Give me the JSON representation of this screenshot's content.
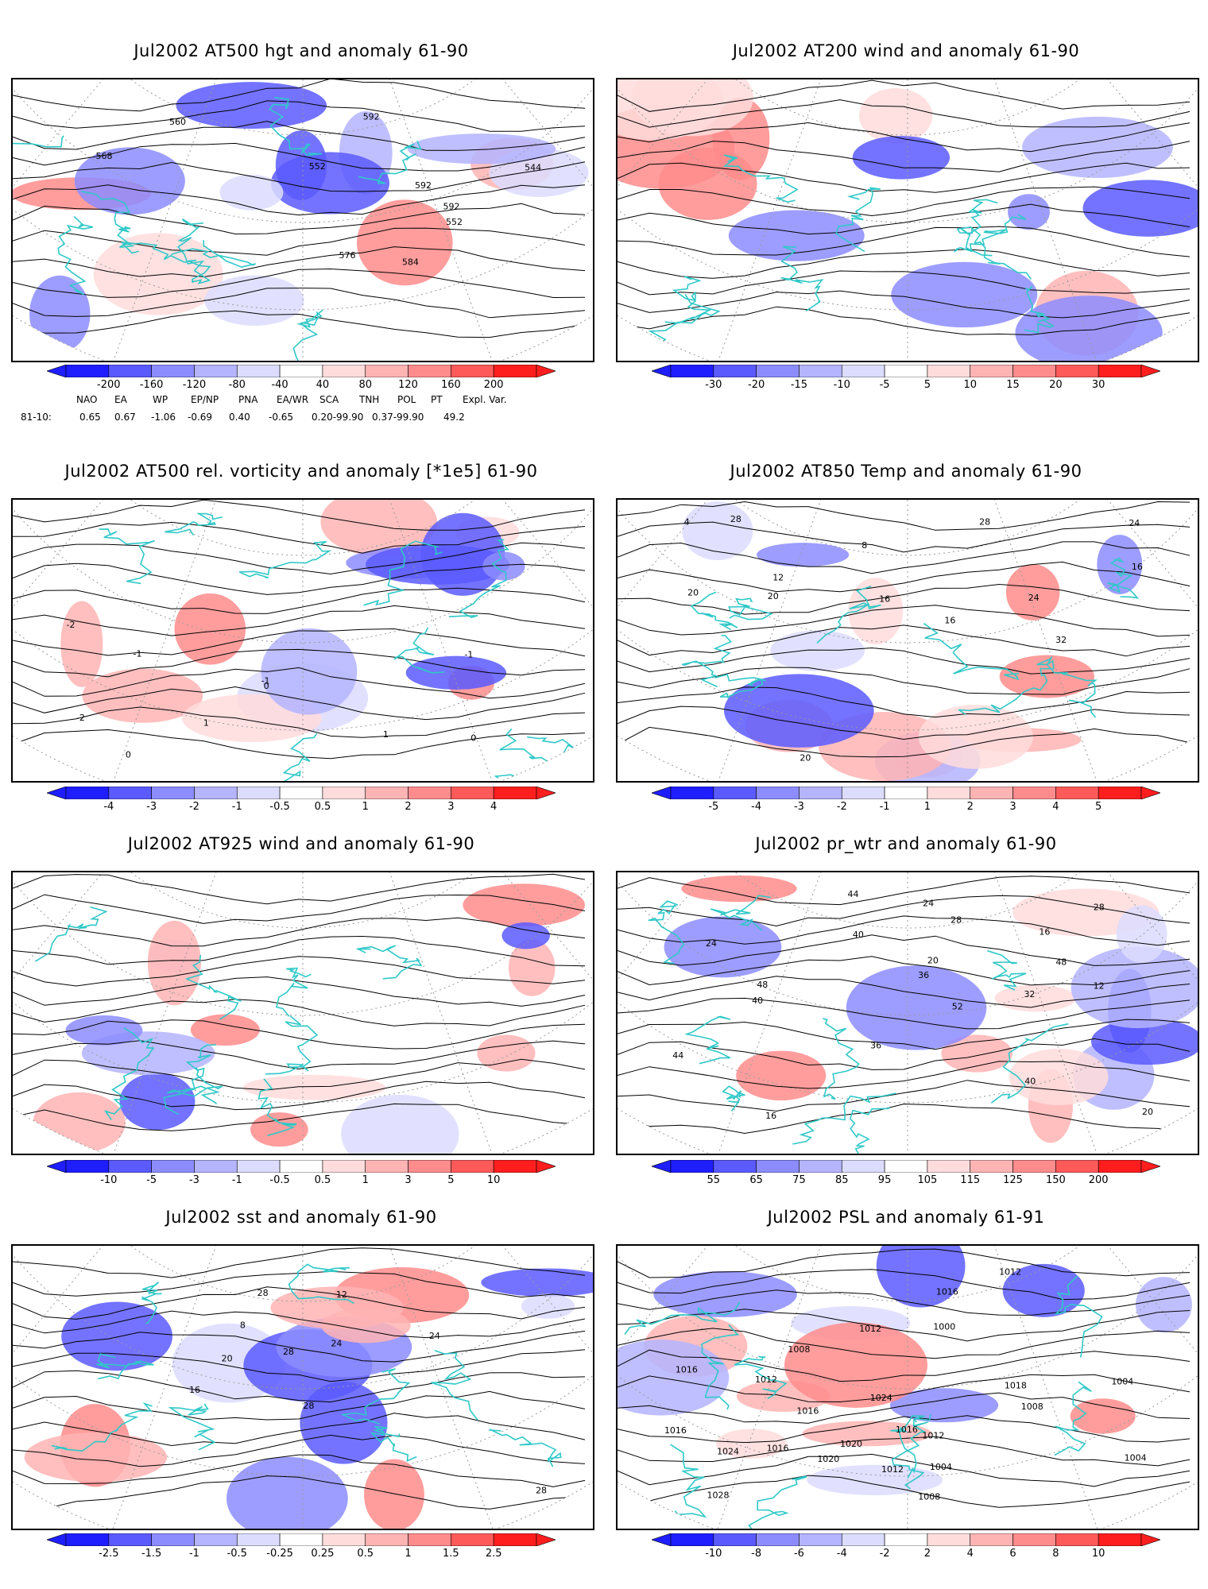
{
  "panels": [
    {
      "title": "Jul2002 AT500 hgt and anomaly 61-90",
      "levels": [
        "-200",
        "-160",
        "-120",
        "-80",
        "-40",
        "40",
        "80",
        "120",
        "160",
        "200"
      ],
      "contour_labels": [
        "544",
        "552",
        "552",
        "560",
        "568",
        "576",
        "584",
        "592",
        "592",
        "592"
      ]
    },
    {
      "title": "Jul2002 AT200 wind and anomaly 61-90",
      "levels": [
        "-30",
        "-20",
        "-15",
        "-10",
        "-5",
        "5",
        "10",
        "15",
        "20",
        "30"
      ],
      "contour_labels": []
    },
    {
      "title": "Jul2002 AT500 rel. vorticity and anomaly [*1e5] 61-90",
      "levels": [
        "-4",
        "-3",
        "-2",
        "-1",
        "-0.5",
        "0.5",
        "1",
        "2",
        "3",
        "4"
      ],
      "contour_labels": [
        "0",
        "-1",
        "1",
        "-2",
        "0",
        "-1",
        "1",
        "0",
        "-2",
        "-1"
      ]
    },
    {
      "title": "Jul2002 AT850 Temp and anomaly 61-90",
      "levels": [
        "-5",
        "-4",
        "-3",
        "-2",
        "-1",
        "1",
        "2",
        "3",
        "4",
        "5"
      ],
      "contour_labels": [
        "20",
        "16",
        "4",
        "8",
        "12",
        "24",
        "28",
        "32",
        "28",
        "24",
        "20",
        "16",
        "16",
        "20"
      ]
    },
    {
      "title": "Jul2002 AT925 wind and anomaly 61-90",
      "levels": [
        "-10",
        "-5",
        "-3",
        "-1",
        "-0.5",
        "0.5",
        "1",
        "3",
        "5",
        "10"
      ],
      "contour_labels": []
    },
    {
      "title": "Jul2002 pr_wtr and anomaly 61-90",
      "levels": [
        "55",
        "65",
        "75",
        "85",
        "95",
        "105",
        "115",
        "125",
        "150",
        "200"
      ],
      "contour_labels": [
        "44",
        "52",
        "36",
        "40",
        "20",
        "16",
        "24",
        "28",
        "12",
        "36",
        "32",
        "28",
        "24",
        "16",
        "20",
        "40",
        "44",
        "48",
        "40",
        "48"
      ]
    },
    {
      "title": "Jul2002 sst and anomaly 61-90",
      "levels": [
        "-2.5",
        "-1.5",
        "-1",
        "-0.5",
        "-0.25",
        "0.25",
        "0.5",
        "1",
        "1.5",
        "2.5"
      ],
      "contour_labels": [
        "28",
        "28",
        "16",
        "12",
        "8",
        "20",
        "24",
        "28",
        "28",
        "24"
      ]
    },
    {
      "title": "Jul2002 PSL and anomaly 61-91",
      "levels": [
        "-10",
        "-8",
        "-6",
        "-4",
        "-2",
        "2",
        "4",
        "6",
        "8",
        "10"
      ],
      "contour_labels": [
        "1012",
        "1016",
        "1016",
        "1004",
        "1008",
        "1012",
        "1016",
        "1020",
        "1024",
        "1028",
        "1024",
        "1020",
        "1016",
        "1008",
        "1012",
        "1008",
        "1012",
        "1018",
        "1016",
        "1000",
        "1004",
        "1004",
        "1012",
        "1016"
      ]
    }
  ],
  "indices": {
    "names": [
      "NAO",
      "EA",
      "WP",
      "EP/NP",
      "PNA",
      "EA/WR",
      "SCA",
      "TNH",
      "POL",
      "PT",
      "Expl. Var."
    ],
    "row_label": "81-10:",
    "values": [
      "0.65",
      "0.67",
      "-1.06",
      "-0.69",
      "0.40",
      "-0.65",
      "0.20-99.90",
      "0.37-99.90",
      "49.2"
    ]
  },
  "colors": {
    "coast": "#30c8c8",
    "contour": "#000000",
    "neg": [
      "#1e1eff",
      "#5a5aff",
      "#8c8cff",
      "#b4b4ff",
      "#dcdcff"
    ],
    "pos": [
      "#ffdcdc",
      "#ffb4b4",
      "#ff8c8c",
      "#ff5a5a",
      "#ff1e1e"
    ]
  }
}
